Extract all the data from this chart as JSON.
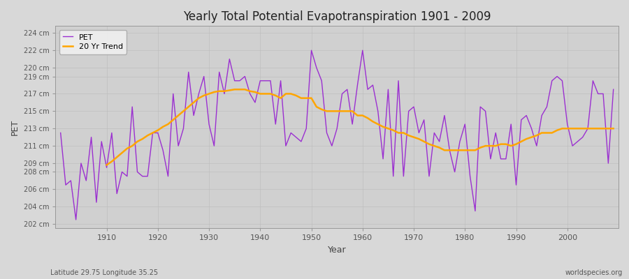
{
  "title": "Yearly Total Potential Evapotranspiration 1901 - 2009",
  "xlabel": "Year",
  "ylabel": "PET",
  "subtitle_left": "Latitude 29.75 Longitude 35.25",
  "subtitle_right": "worldspecies.org",
  "pet_label": "PET",
  "trend_label": "20 Yr Trend",
  "pet_color": "#9b30d0",
  "trend_color": "#ffa500",
  "fig_bg_color": "#d8d8d8",
  "plot_bg_color": "#d0d0d0",
  "ylim_min": 201.5,
  "ylim_max": 224.8,
  "yticks": [
    202,
    204,
    206,
    208,
    209,
    211,
    213,
    215,
    217,
    219,
    220,
    222,
    224
  ],
  "xlim_min": 1900,
  "xlim_max": 2010,
  "xticks": [
    1910,
    1920,
    1930,
    1940,
    1950,
    1960,
    1970,
    1980,
    1990,
    2000
  ],
  "years": [
    1901,
    1902,
    1903,
    1904,
    1905,
    1906,
    1907,
    1908,
    1909,
    1910,
    1911,
    1912,
    1913,
    1914,
    1915,
    1916,
    1917,
    1918,
    1919,
    1920,
    1921,
    1922,
    1923,
    1924,
    1925,
    1926,
    1927,
    1928,
    1929,
    1930,
    1931,
    1932,
    1933,
    1934,
    1935,
    1936,
    1937,
    1938,
    1939,
    1940,
    1941,
    1942,
    1943,
    1944,
    1945,
    1946,
    1947,
    1948,
    1949,
    1950,
    1951,
    1952,
    1953,
    1954,
    1955,
    1956,
    1957,
    1958,
    1959,
    1960,
    1961,
    1962,
    1963,
    1964,
    1965,
    1966,
    1967,
    1968,
    1969,
    1970,
    1971,
    1972,
    1973,
    1974,
    1975,
    1976,
    1977,
    1978,
    1979,
    1980,
    1981,
    1982,
    1983,
    1984,
    1985,
    1986,
    1987,
    1988,
    1989,
    1990,
    1991,
    1992,
    1993,
    1994,
    1995,
    1996,
    1997,
    1998,
    1999,
    2000,
    2001,
    2002,
    2003,
    2004,
    2005,
    2006,
    2007,
    2008,
    2009
  ],
  "pet_values": [
    212.5,
    206.5,
    207.0,
    202.5,
    209.0,
    207.0,
    212.0,
    204.5,
    211.5,
    208.5,
    212.5,
    205.5,
    208.0,
    207.5,
    215.5,
    208.0,
    207.5,
    207.5,
    212.5,
    212.5,
    210.5,
    207.5,
    217.0,
    211.0,
    213.0,
    219.5,
    214.5,
    217.0,
    219.0,
    213.5,
    211.0,
    219.5,
    217.0,
    221.0,
    218.5,
    218.5,
    219.0,
    217.0,
    216.0,
    218.5,
    218.5,
    218.5,
    213.5,
    218.5,
    211.0,
    212.5,
    212.0,
    211.5,
    213.0,
    222.0,
    220.0,
    218.5,
    212.5,
    211.0,
    213.0,
    217.0,
    217.5,
    213.5,
    218.0,
    222.0,
    217.5,
    218.0,
    215.0,
    209.5,
    217.5,
    207.5,
    218.5,
    207.5,
    215.0,
    215.5,
    212.5,
    214.0,
    207.5,
    212.5,
    211.5,
    214.5,
    210.5,
    208.0,
    211.5,
    213.5,
    207.5,
    203.5,
    215.5,
    215.0,
    209.5,
    212.5,
    209.5,
    209.5,
    213.5,
    206.5,
    214.0,
    214.5,
    213.0,
    211.0,
    214.5,
    215.5,
    218.5,
    219.0,
    218.5,
    213.5,
    211.0,
    211.5,
    212.0,
    213.0,
    218.5,
    217.0,
    217.0,
    209.0,
    217.5
  ],
  "trend_years": [
    1910,
    1911,
    1912,
    1913,
    1914,
    1915,
    1916,
    1917,
    1918,
    1919,
    1920,
    1921,
    1922,
    1923,
    1924,
    1925,
    1926,
    1927,
    1928,
    1929,
    1930,
    1931,
    1932,
    1933,
    1934,
    1935,
    1936,
    1937,
    1938,
    1939,
    1940,
    1941,
    1942,
    1943,
    1944,
    1945,
    1946,
    1947,
    1948,
    1949,
    1950,
    1951,
    1952,
    1953,
    1954,
    1955,
    1956,
    1957,
    1958,
    1959,
    1960,
    1961,
    1962,
    1963,
    1964,
    1965,
    1966,
    1967,
    1968,
    1969,
    1970,
    1971,
    1972,
    1973,
    1974,
    1975,
    1976,
    1977,
    1978,
    1979,
    1980,
    1981,
    1982,
    1983,
    1984,
    1985,
    1986,
    1987,
    1988,
    1989,
    1990,
    1991,
    1992,
    1993,
    1994,
    1995,
    1996,
    1997,
    1998,
    1999,
    2000,
    2001,
    2002,
    2003,
    2004,
    2005,
    2006,
    2007,
    2008,
    2009
  ],
  "trend_values": [
    208.8,
    209.2,
    209.7,
    210.2,
    210.7,
    211.0,
    211.5,
    211.8,
    212.2,
    212.5,
    212.8,
    213.2,
    213.5,
    214.0,
    214.5,
    215.0,
    215.5,
    216.0,
    216.5,
    216.8,
    217.0,
    217.2,
    217.3,
    217.3,
    217.4,
    217.5,
    217.5,
    217.5,
    217.3,
    217.2,
    217.0,
    217.0,
    217.0,
    216.8,
    216.5,
    217.0,
    217.0,
    216.8,
    216.5,
    216.5,
    216.5,
    215.5,
    215.2,
    215.0,
    215.0,
    215.0,
    215.0,
    215.0,
    215.0,
    214.5,
    214.5,
    214.2,
    213.8,
    213.5,
    213.2,
    213.0,
    212.8,
    212.5,
    212.5,
    212.2,
    212.0,
    211.8,
    211.5,
    211.2,
    211.0,
    210.8,
    210.5,
    210.5,
    210.5,
    210.5,
    210.5,
    210.5,
    210.5,
    210.8,
    211.0,
    211.0,
    211.0,
    211.2,
    211.2,
    211.0,
    211.2,
    211.5,
    211.8,
    212.0,
    212.2,
    212.5,
    212.5,
    212.5,
    212.8,
    213.0,
    213.0,
    213.0,
    213.0,
    213.0,
    213.0,
    213.0,
    213.0,
    213.0,
    213.0,
    213.0
  ]
}
